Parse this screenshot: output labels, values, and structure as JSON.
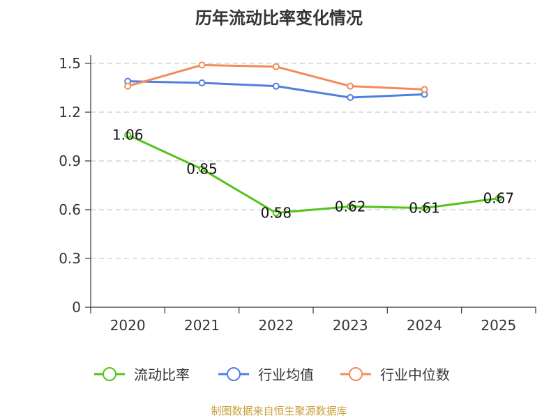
{
  "chart_data": {
    "type": "line",
    "title": "历年流动比率变化情况",
    "categories": [
      "2020",
      "2021",
      "2022",
      "2023",
      "2024",
      "2025"
    ],
    "y_ticks": [
      "0",
      "0.3",
      "0.6",
      "0.9",
      "1.2",
      "1.5"
    ],
    "ylim": [
      0,
      1.5
    ],
    "grid": true,
    "legend_position": "bottom",
    "series": [
      {
        "name": "流动比率",
        "color": "#52c41a",
        "values": [
          1.06,
          0.85,
          0.58,
          0.62,
          0.61,
          0.67
        ],
        "data_labels": [
          "1.06",
          "0.85",
          "0.58",
          "0.62",
          "0.61",
          "0.67"
        ]
      },
      {
        "name": "行业均值",
        "color": "#4f7fdf",
        "values": [
          1.39,
          1.38,
          1.36,
          1.29,
          1.31,
          null
        ]
      },
      {
        "name": "行业中位数",
        "color": "#f38b58",
        "values": [
          1.36,
          1.49,
          1.48,
          1.36,
          1.34,
          null
        ]
      }
    ]
  },
  "source_note": "制图数据来自恒生聚源数据库"
}
